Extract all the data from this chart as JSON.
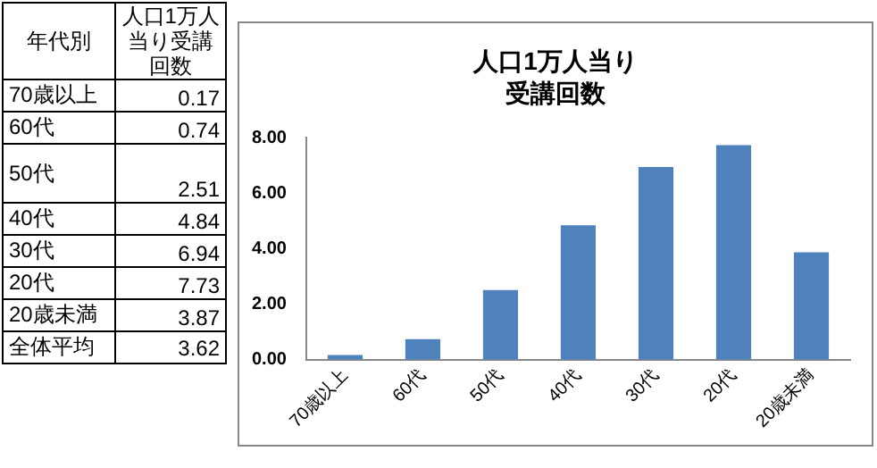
{
  "chart_data": {
    "type": "bar",
    "title": "人口1万人当り受講回数",
    "categories": [
      "70歳以上",
      "60代",
      "50代",
      "40代",
      "30代",
      "20代",
      "20歳未満"
    ],
    "values": [
      0.17,
      0.74,
      2.51,
      4.84,
      6.94,
      7.73,
      3.87
    ],
    "color": "#4f81bd",
    "ylim": [
      0,
      8
    ],
    "yticks": [
      {
        "value": 0,
        "label": "0.00"
      },
      {
        "value": 2,
        "label": "2.00"
      },
      {
        "value": 4,
        "label": "4.00"
      },
      {
        "value": 6,
        "label": "6.00"
      },
      {
        "value": 8,
        "label": "8.00"
      }
    ],
    "grid": false,
    "legend": false,
    "annotations": [
      "年代別",
      "人口1万人当り受講回数",
      "0.17",
      "0.74",
      "2.51",
      "4.84",
      "6.94",
      "7.73",
      "3.87",
      "全体平均",
      "3.62"
    ]
  }
}
